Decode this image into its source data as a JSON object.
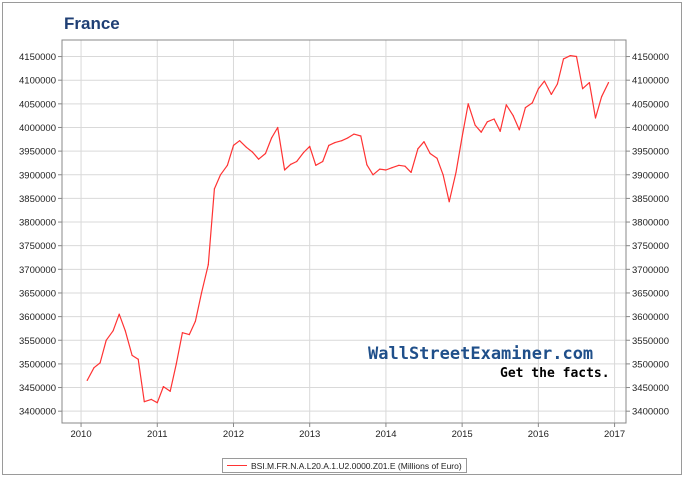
{
  "chart_data": {
    "type": "line",
    "title": "France",
    "xlabel": "",
    "ylabel": "",
    "grid": true,
    "legend_position": "bottom",
    "xlim": [
      2009.75,
      2017.15
    ],
    "ylim": [
      3375000,
      4185000
    ],
    "x_ticks": [
      "2010",
      "2011",
      "2012",
      "2013",
      "2014",
      "2015",
      "2016",
      "2017"
    ],
    "y_ticks": [
      "3400000",
      "3450000",
      "3500000",
      "3550000",
      "3600000",
      "3650000",
      "3700000",
      "3750000",
      "3800000",
      "3850000",
      "3900000",
      "3950000",
      "4000000",
      "4050000",
      "4100000",
      "4150000"
    ],
    "series": [
      {
        "name": "BSI.M.FR.N.A.L20.A.1.U2.0000.Z01.E (Millions of Euro)",
        "color": "#ff3333",
        "x": [
          2010.08,
          2010.17,
          2010.25,
          2010.33,
          2010.42,
          2010.5,
          2010.58,
          2010.67,
          2010.75,
          2010.83,
          2010.92,
          2011.0,
          2011.08,
          2011.17,
          2011.25,
          2011.33,
          2011.42,
          2011.5,
          2011.58,
          2011.67,
          2011.75,
          2011.83,
          2011.92,
          2012.0,
          2012.08,
          2012.17,
          2012.25,
          2012.33,
          2012.42,
          2012.5,
          2012.58,
          2012.67,
          2012.75,
          2012.83,
          2012.92,
          2013.0,
          2013.08,
          2013.17,
          2013.25,
          2013.33,
          2013.42,
          2013.5,
          2013.58,
          2013.67,
          2013.75,
          2013.83,
          2013.92,
          2014.0,
          2014.08,
          2014.17,
          2014.25,
          2014.33,
          2014.42,
          2014.5,
          2014.58,
          2014.67,
          2014.75,
          2014.83,
          2014.92,
          2015.0,
          2015.08,
          2015.17,
          2015.25,
          2015.33,
          2015.42,
          2015.5,
          2015.58,
          2015.67,
          2015.75,
          2015.83,
          2015.92,
          2016.0,
          2016.08,
          2016.17,
          2016.25,
          2016.33,
          2016.42,
          2016.5,
          2016.58,
          2016.67,
          2016.75,
          2016.83,
          2016.92
        ],
        "values": [
          3465000,
          3492000,
          3502000,
          3550000,
          3570000,
          3605000,
          3570000,
          3518000,
          3510000,
          3420000,
          3425000,
          3418000,
          3452000,
          3442000,
          3500000,
          3566000,
          3562000,
          3590000,
          3650000,
          3710000,
          3870000,
          3900000,
          3920000,
          3962000,
          3972000,
          3958000,
          3948000,
          3933000,
          3945000,
          3978000,
          4000000,
          3910000,
          3922000,
          3928000,
          3947000,
          3960000,
          3920000,
          3928000,
          3962000,
          3968000,
          3972000,
          3978000,
          3986000,
          3982000,
          3921000,
          3900000,
          3912000,
          3910000,
          3915000,
          3920000,
          3918000,
          3905000,
          3955000,
          3970000,
          3945000,
          3935000,
          3900000,
          3843000,
          3905000,
          3980000,
          4050000,
          4005000,
          3990000,
          4012000,
          4018000,
          3992000,
          4048000,
          4025000,
          3995000,
          4042000,
          4052000,
          4082000,
          4098000,
          4070000,
          4092000,
          4145000,
          4152000,
          4150000,
          4082000,
          4095000,
          4020000,
          4065000,
          4095000
        ]
      }
    ]
  },
  "watermark": {
    "site": "WallStreetExaminer.com",
    "tagline": "Get the facts."
  }
}
